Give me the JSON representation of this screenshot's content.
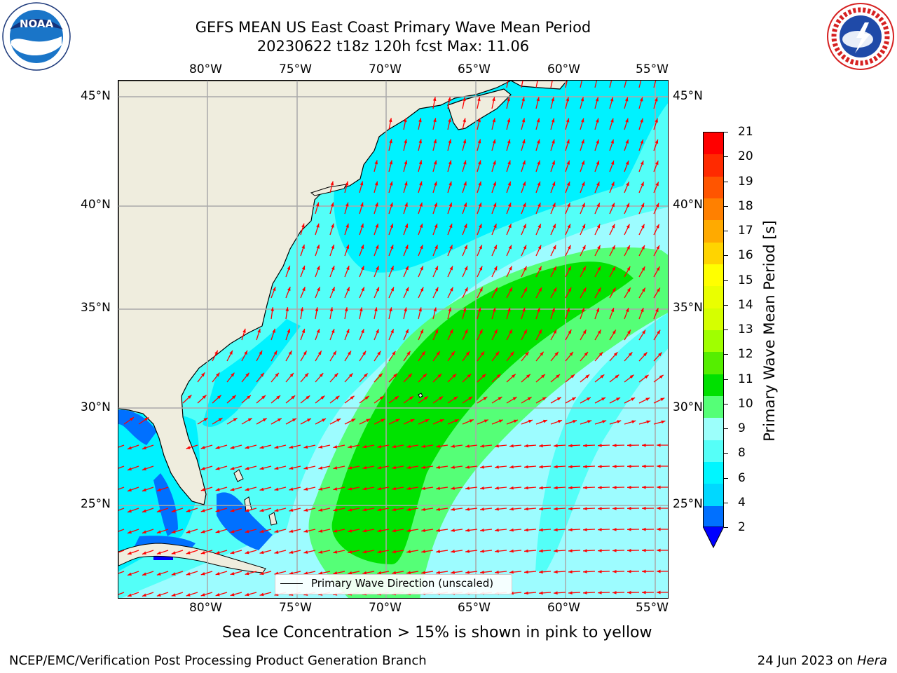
{
  "header": {
    "title_line1": "GEFS MEAN US East Coast Primary Wave Mean Period",
    "title_line2": "20230622 t18z 120h fcst   Max: 11.06"
  },
  "logos": {
    "left": {
      "name": "noaa-logo",
      "text": "NOAA",
      "ring_text": "NATIONAL OCEANIC AND ATMOSPHERIC ADMINISTRATION · U.S. DEPARTMENT OF COMMERCE"
    },
    "right": {
      "name": "nws-logo",
      "ring_text": "NATIONAL WEATHER SERVICE"
    }
  },
  "axes": {
    "lon_labels": [
      "80°W",
      "75°W",
      "70°W",
      "65°W",
      "60°W",
      "55°W"
    ],
    "lat_labels": [
      "45°N",
      "40°N",
      "35°N",
      "30°N",
      "25°N"
    ]
  },
  "legend": {
    "label": "Primary Wave Direction (unscaled)"
  },
  "colorbar": {
    "label": "Primary Wave Mean Period [s]",
    "ticks": [
      "21",
      "20",
      "19",
      "18",
      "17",
      "16",
      "15",
      "14",
      "13",
      "12",
      "11",
      "10",
      "9",
      "8",
      "6",
      "4",
      "2"
    ],
    "colors": [
      "#ff0000",
      "#ff2a00",
      "#ff5500",
      "#ff8000",
      "#ffaa00",
      "#ffd400",
      "#ffff00",
      "#eaff00",
      "#d5ff00",
      "#a0ff00",
      "#55ee00",
      "#00e000",
      "#55ff77",
      "#9cfffb",
      "#55fff8",
      "#00f6ff",
      "#00d8ff",
      "#0070ff"
    ],
    "extend_color": "#0000ff"
  },
  "notes": {
    "sea_ice": "Sea Ice Concentration > 15% is shown in pink to yellow"
  },
  "footer": {
    "left": "NCEP/EMC/Verification Post Processing Product Generation Branch",
    "right_date": "24 Jun 2023 on",
    "right_host": "Hera"
  },
  "colors": {
    "land": "#efedde",
    "period_4_6": "#00f2ff",
    "period_6_8": "#53fff8",
    "period_8_9": "#9dfcff",
    "period_9_10": "#55ff77",
    "period_10_11": "#00e300",
    "period_2_4": "#0070ff",
    "arrow": "#ff0000",
    "grid": "#aaaaaa"
  }
}
